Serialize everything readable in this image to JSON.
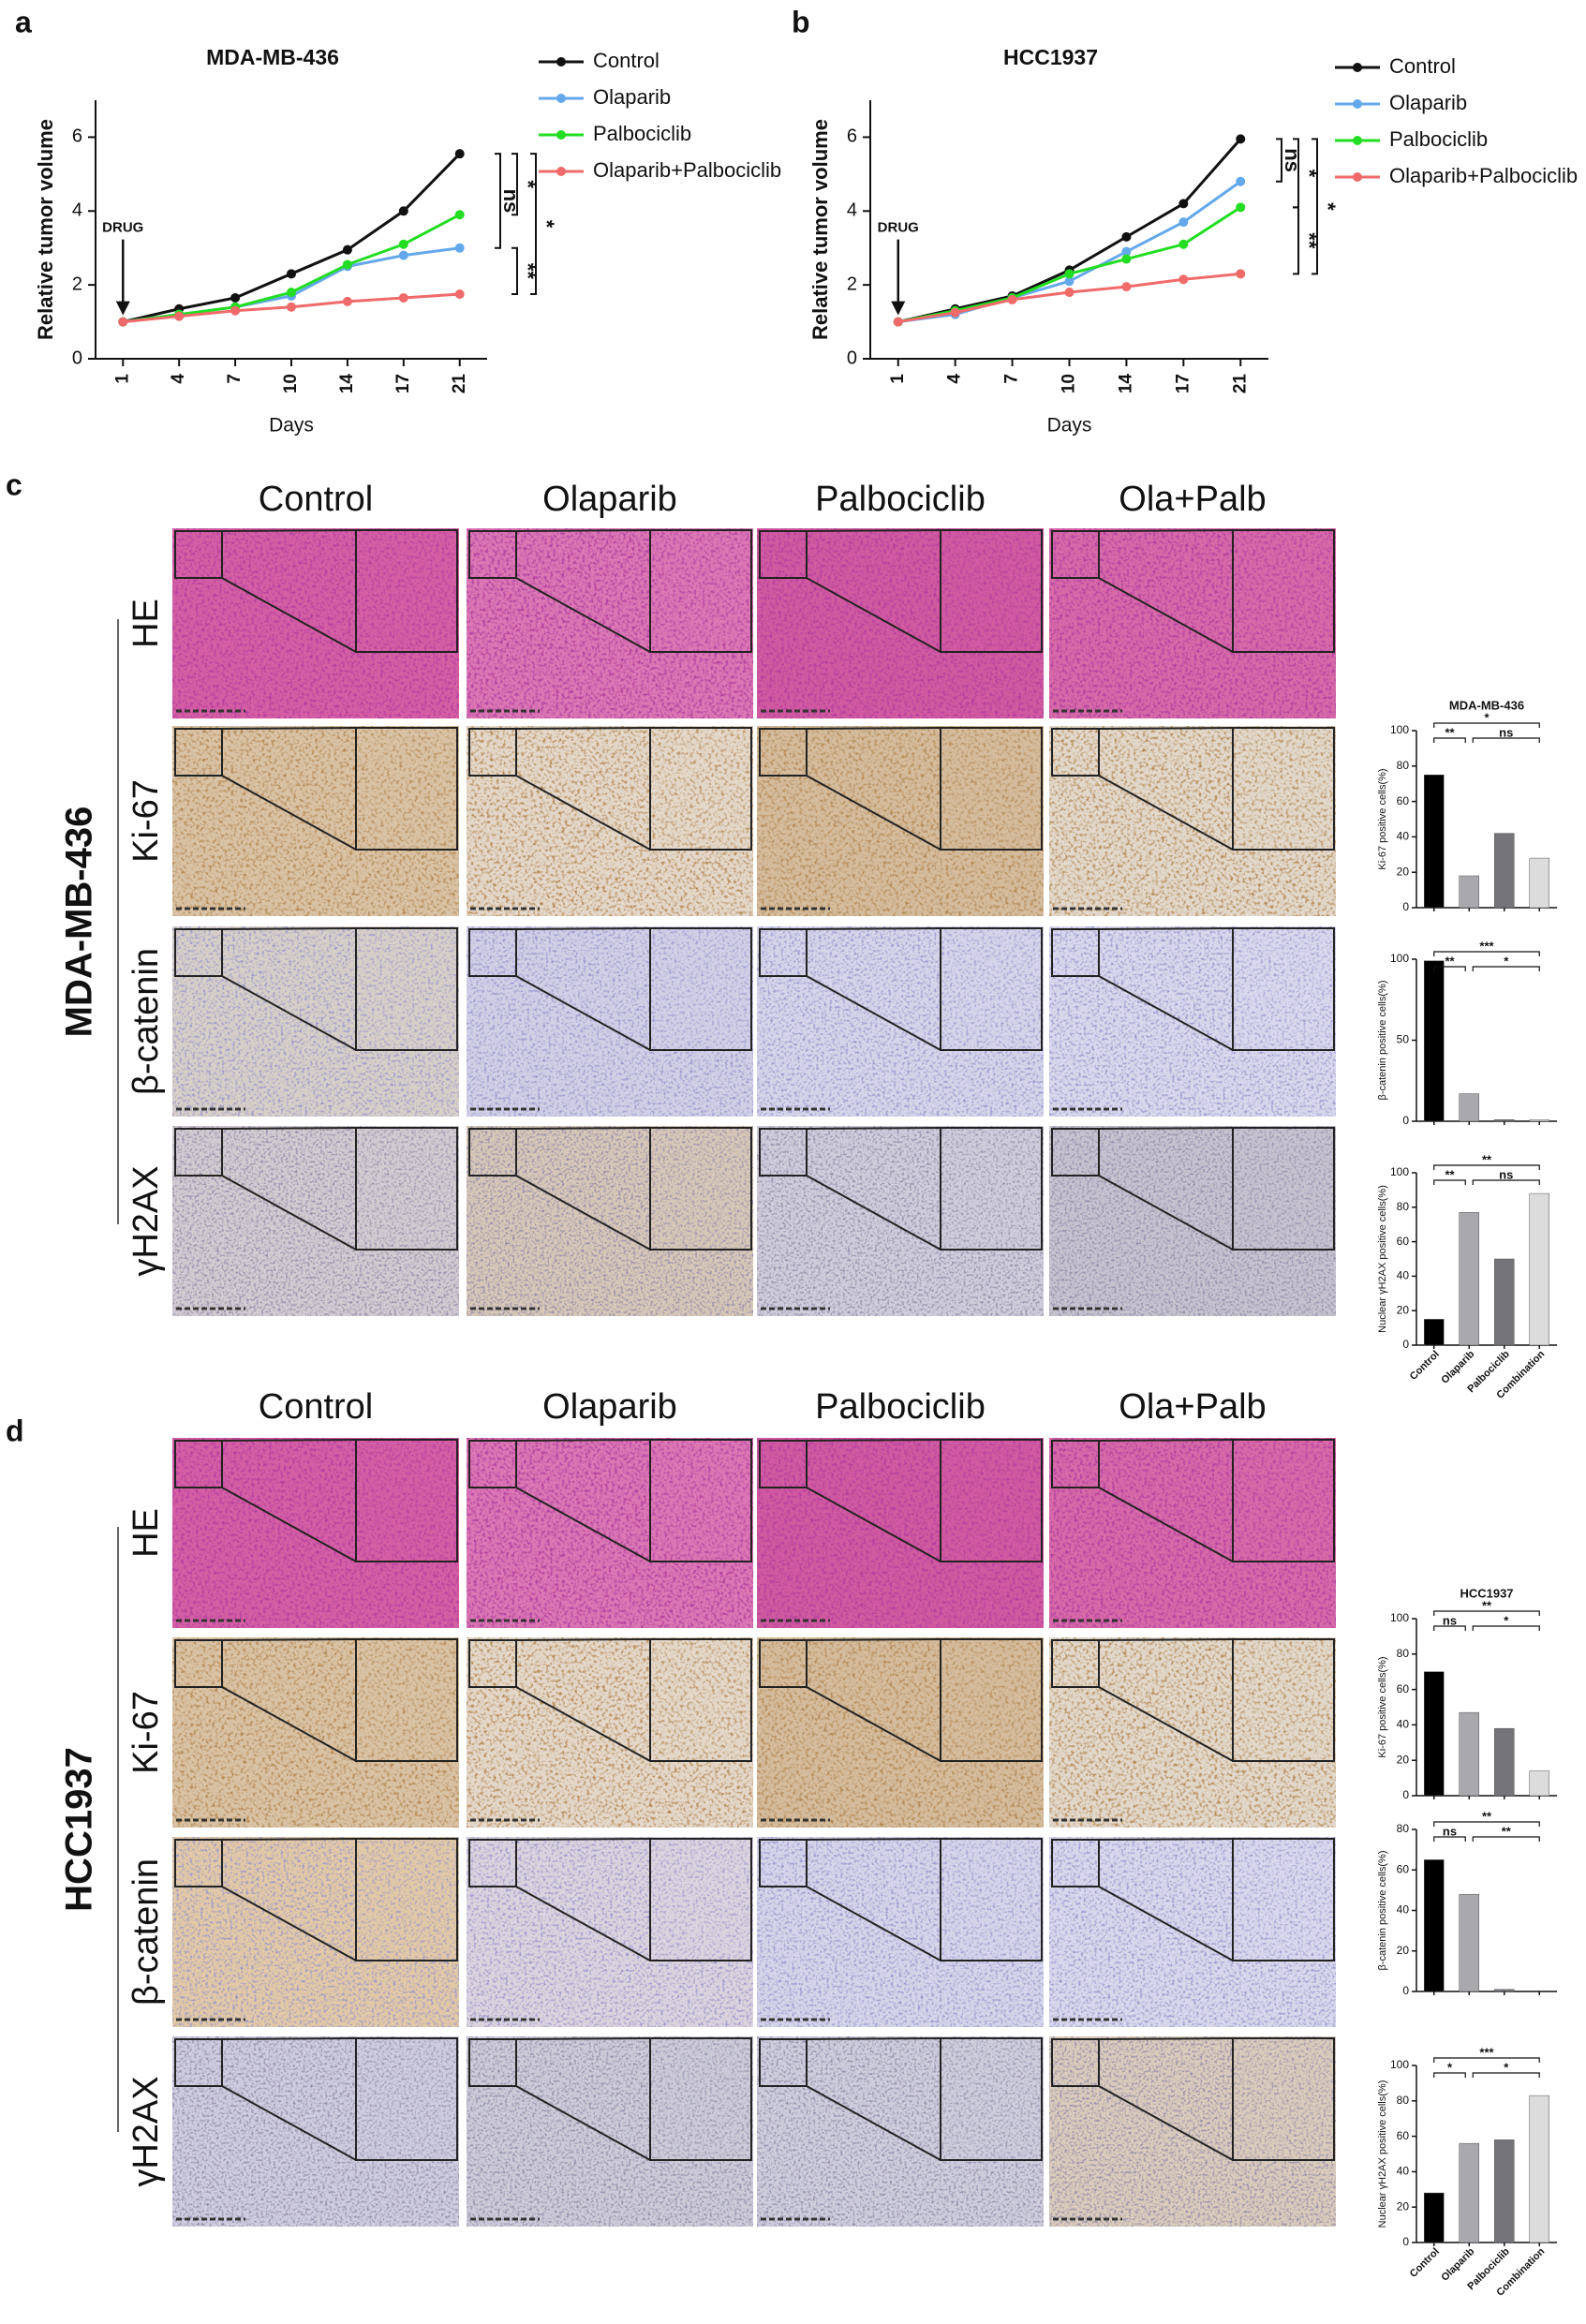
{
  "panel_labels": [
    "a",
    "b",
    "c",
    "d"
  ],
  "histology": [
    {
      "cell_line": "MDA-MB-436",
      "columns": [
        "Control",
        "Olaparib",
        "Palbociclib",
        "Ola+Palb"
      ],
      "rows": [
        "HE",
        "Ki-67",
        "β-catenin",
        "γH2AX"
      ]
    },
    {
      "cell_line": "HCC1937",
      "columns": [
        "Control",
        "Olaparib",
        "Palbociclib",
        "Ola+Palb"
      ],
      "rows": [
        "HE",
        "Ki-67",
        "β-catenin",
        "γH2AX"
      ]
    }
  ],
  "chart_data": [
    {
      "type": "line",
      "title": "MDA-MB-436",
      "x_label": "Days",
      "y_label": "Relative tumor volume",
      "categories": [
        "1",
        "4",
        "7",
        "10",
        "14",
        "17",
        "21"
      ],
      "ylim": [
        0,
        7
      ],
      "yticks": [
        0,
        2,
        4,
        6
      ],
      "annotation": "DRUG",
      "series": [
        {
          "name": "Control",
          "color": "#111111",
          "values": [
            1,
            1.35,
            1.65,
            2.3,
            2.95,
            4.0,
            5.55
          ]
        },
        {
          "name": "Olaparib",
          "color": "#64a8ec",
          "values": [
            1,
            1.2,
            1.4,
            1.7,
            2.5,
            2.8,
            3.0
          ]
        },
        {
          "name": "Palbociclib",
          "color": "#22dd22",
          "values": [
            1,
            1.2,
            1.4,
            1.8,
            2.55,
            3.1,
            3.9
          ]
        },
        {
          "name": "Olaparib+Palbociclib",
          "color": "#f06a6a",
          "values": [
            1,
            1.15,
            1.3,
            1.4,
            1.55,
            1.65,
            1.75
          ]
        }
      ],
      "significance": [
        "ns",
        "*",
        "*",
        "**"
      ]
    },
    {
      "type": "line",
      "title": "HCC1937",
      "x_label": "Days",
      "y_label": "Relative tumor volume",
      "categories": [
        "1",
        "4",
        "7",
        "10",
        "14",
        "17",
        "21"
      ],
      "ylim": [
        0,
        7
      ],
      "yticks": [
        0,
        2,
        4,
        6
      ],
      "annotation": "DRUG",
      "series": [
        {
          "name": "Control",
          "color": "#111111",
          "values": [
            1,
            1.35,
            1.7,
            2.4,
            3.3,
            4.2,
            5.95
          ]
        },
        {
          "name": "Olaparib",
          "color": "#64a8ec",
          "values": [
            1,
            1.2,
            1.65,
            2.1,
            2.9,
            3.7,
            4.8
          ]
        },
        {
          "name": "Palbociclib",
          "color": "#22dd22",
          "values": [
            1,
            1.3,
            1.65,
            2.3,
            2.7,
            3.1,
            4.1
          ]
        },
        {
          "name": "Olaparib+Palbociclib",
          "color": "#f06a6a",
          "values": [
            1,
            1.25,
            1.6,
            1.8,
            1.95,
            2.15,
            2.3
          ]
        }
      ],
      "significance": [
        "ns",
        "*",
        "*",
        "**"
      ]
    },
    {
      "type": "bar",
      "title": "MDA-MB-436",
      "y_label": "Ki-67 positive cells(%)",
      "ylim": [
        0,
        100
      ],
      "yticks": [
        0,
        20,
        40,
        60,
        80,
        100
      ],
      "values": [
        75,
        18,
        42,
        28
      ],
      "colors": [
        "#000000",
        "#a9a9ad",
        "#757579",
        "#dcdcdc"
      ],
      "significance": [
        "*",
        "**",
        "ns"
      ]
    },
    {
      "type": "bar",
      "y_label": "β-catenin positive cells(%)",
      "ylim": [
        0,
        100
      ],
      "yticks": [
        0,
        50,
        100
      ],
      "values": [
        99,
        17,
        1,
        1
      ],
      "colors": [
        "#000000",
        "#a9a9ad",
        "#757579",
        "#dcdcdc"
      ],
      "significance": [
        "***",
        "**",
        "*"
      ]
    },
    {
      "type": "bar",
      "y_label": "Nuclear γH2AX positive cells(%)",
      "ylim": [
        0,
        100
      ],
      "yticks": [
        0,
        20,
        40,
        60,
        80,
        100
      ],
      "categories": [
        "Control",
        "Olaparib",
        "Palbociclib",
        "Combination"
      ],
      "values": [
        15,
        77,
        50,
        88
      ],
      "colors": [
        "#000000",
        "#a9a9ad",
        "#757579",
        "#dcdcdc"
      ],
      "significance": [
        "**",
        "**",
        "ns"
      ]
    },
    {
      "type": "bar",
      "title": "HCC1937",
      "y_label": "Ki-67 positive cells(%)",
      "ylim": [
        0,
        100
      ],
      "yticks": [
        0,
        20,
        40,
        60,
        80,
        100
      ],
      "values": [
        70,
        47,
        38,
        14
      ],
      "colors": [
        "#000000",
        "#a9a9ad",
        "#757579",
        "#dcdcdc"
      ],
      "significance": [
        "**",
        "ns",
        "*"
      ]
    },
    {
      "type": "bar",
      "y_label": "β-catenin positive cells(%)",
      "ylim": [
        0,
        80
      ],
      "yticks": [
        0,
        20,
        40,
        60,
        80
      ],
      "values": [
        65,
        48,
        1,
        0
      ],
      "colors": [
        "#000000",
        "#a9a9ad",
        "#757579",
        "#dcdcdc"
      ],
      "significance": [
        "**",
        "ns",
        "**"
      ]
    },
    {
      "type": "bar",
      "y_label": "Nuclear γH2AX positive cells(%)",
      "ylim": [
        0,
        100
      ],
      "yticks": [
        0,
        20,
        40,
        60,
        80,
        100
      ],
      "categories": [
        "Control",
        "Olaparib",
        "Palbociclib",
        "Combination"
      ],
      "values": [
        28,
        56,
        58,
        83
      ],
      "colors": [
        "#000000",
        "#a9a9ad",
        "#757579",
        "#dcdcdc"
      ],
      "significance": [
        "***",
        "*",
        "*"
      ]
    }
  ]
}
